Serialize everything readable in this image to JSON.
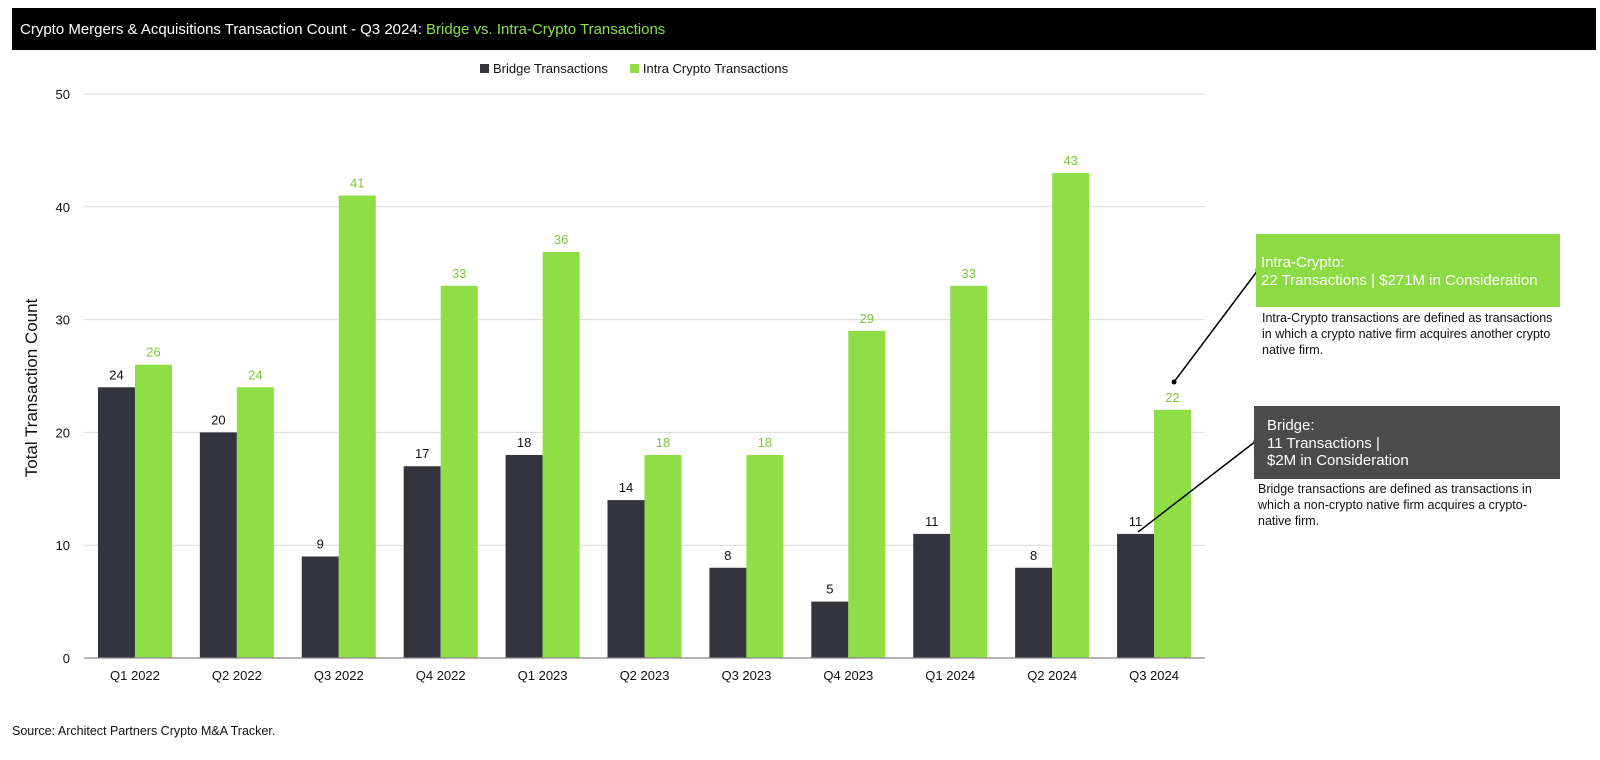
{
  "header": {
    "title_main": "Crypto Mergers & Acquisitions Transaction Count - Q3 2024: ",
    "title_accent": "Bridge vs. Intra-Crypto Transactions"
  },
  "colors": {
    "bridge": "#33343D",
    "intra": "#8FDE45",
    "intra_label": "#7CC83A",
    "grid": "#D9D9D9",
    "axis": "#888888"
  },
  "chart_data": {
    "type": "bar",
    "categories": [
      "Q1 2022",
      "Q2 2022",
      "Q3 2022",
      "Q4 2022",
      "Q1 2023",
      "Q2 2023",
      "Q3 2023",
      "Q4 2023",
      "Q1 2024",
      "Q2 2024",
      "Q3 2024"
    ],
    "series": [
      {
        "name": "Bridge Transactions",
        "values": [
          24,
          20,
          9,
          17,
          18,
          14,
          8,
          5,
          11,
          8,
          11
        ]
      },
      {
        "name": "Intra Crypto Transactions",
        "values": [
          26,
          24,
          41,
          33,
          36,
          18,
          18,
          29,
          33,
          43,
          22
        ]
      }
    ],
    "ylabel": "Total Transaction Count",
    "ylim": [
      0,
      50
    ],
    "yticks": [
      0,
      10,
      20,
      30,
      40,
      50
    ],
    "grid": true,
    "legend": "top-center",
    "data_labels": true
  },
  "annotations": {
    "intra": {
      "line1": "Intra-Crypto:",
      "line2": "22 Transactions | $271M in Consideration",
      "desc": "Intra-Crypto transactions are defined as transactions in which a crypto native firm acquires another crypto native firm."
    },
    "bridge": {
      "line1": "Bridge:",
      "line2": "11 Transactions |",
      "line3": "$2M in Consideration",
      "desc": "Bridge transactions are defined as transactions in which a non-crypto native firm acquires a crypto-native firm."
    }
  },
  "footer": {
    "source": "Source: Architect Partners Crypto M&A Tracker."
  }
}
